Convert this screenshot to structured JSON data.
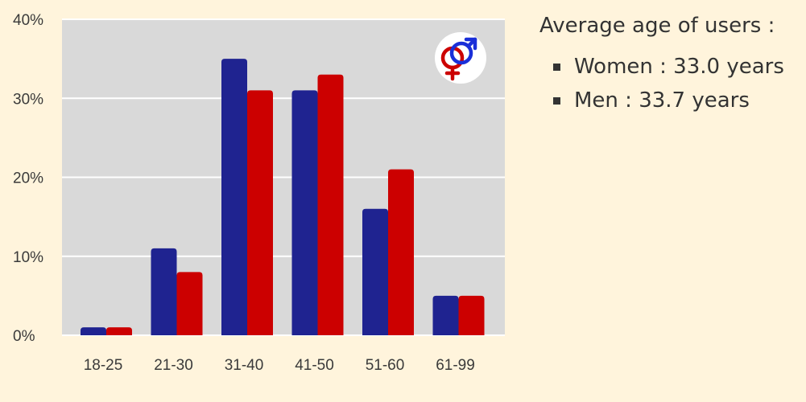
{
  "chart_data": {
    "type": "bar",
    "categories": [
      "18-25",
      "21-30",
      "31-40",
      "41-50",
      "51-60",
      "61-99"
    ],
    "series": [
      {
        "values": [
          1,
          11,
          35,
          31,
          16,
          5
        ]
      },
      {
        "values": [
          1,
          8,
          31,
          33,
          21,
          5
        ]
      }
    ],
    "ylim": [
      0,
      40
    ],
    "yticks": [
      0,
      10,
      20,
      30,
      40
    ],
    "ytick_labels": [
      "0%",
      "10%",
      "20%",
      "30%",
      "40%"
    ],
    "grid": true,
    "colors": {
      "series_1": "#1f2390",
      "series_2": "#cc0000",
      "plot_background": "#d9d9d9",
      "page_background": "#fff4dc",
      "gridline": "#ffffff"
    },
    "icon": "gender-symbols-icon"
  },
  "legend": {
    "title": "Average age of users :",
    "items": [
      {
        "label": "Women : 33.0 years"
      },
      {
        "label": "Men : 33.7 years"
      }
    ]
  }
}
